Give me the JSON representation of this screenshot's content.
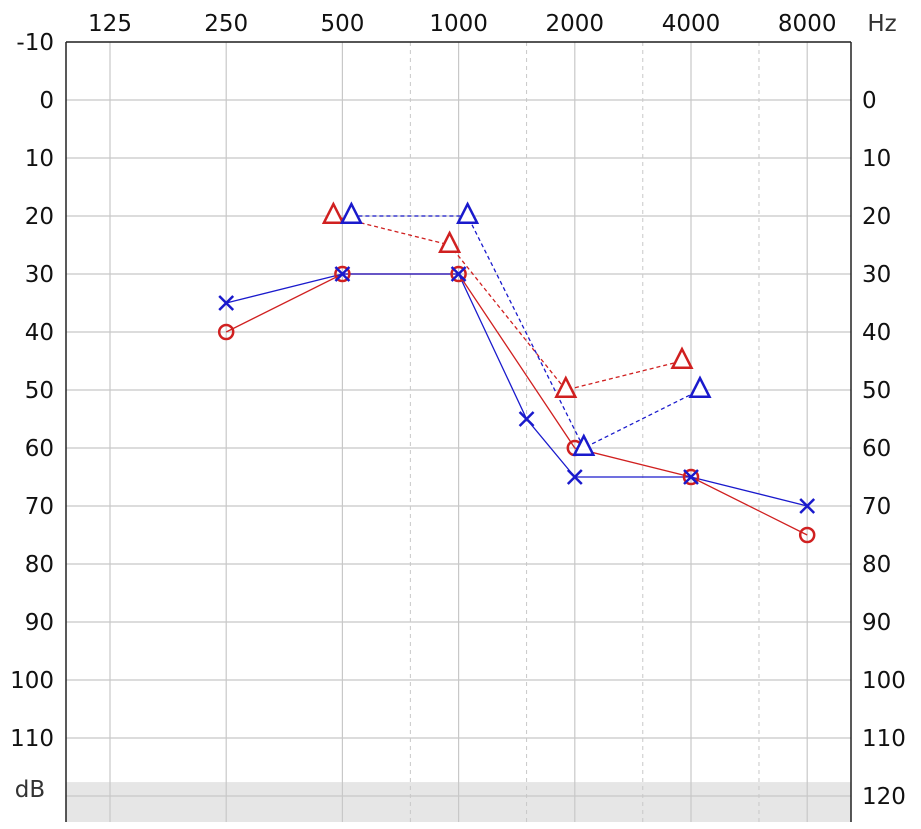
{
  "chart_data": {
    "type": "scatter",
    "title": "",
    "xlabel": "Hz",
    "ylabel": "dB",
    "x_scale": "log2",
    "y_axis_inverted": true,
    "xlim": [
      125,
      8000
    ],
    "ylim": [
      -10,
      120
    ],
    "x_ticks": [
      "125",
      "250",
      "500",
      "1000",
      "2000",
      "4000",
      "8000"
    ],
    "x_intermediate_gridlines": [
      750,
      1500,
      3000,
      6000
    ],
    "y_ticks_left": [
      "-10",
      "0",
      "10",
      "20",
      "30",
      "40",
      "50",
      "60",
      "70",
      "80",
      "90",
      "100",
      "110"
    ],
    "y_ticks_right": [
      "0",
      "10",
      "20",
      "30",
      "40",
      "50",
      "60",
      "70",
      "80",
      "90",
      "100",
      "110",
      "120"
    ],
    "grid": true,
    "colors": {
      "red": "#d02020",
      "blue": "#1a1acc",
      "grid": "#c8c8c8",
      "band": "#e6e6e6"
    },
    "series": [
      {
        "marker": "circle",
        "color": "red",
        "line": "solid",
        "points": [
          [
            250,
            40
          ],
          [
            500,
            30
          ],
          [
            1000,
            30
          ],
          [
            2000,
            60
          ],
          [
            4000,
            65
          ],
          [
            8000,
            75
          ]
        ]
      },
      {
        "marker": "cross",
        "color": "blue",
        "line": "solid",
        "points": [
          [
            250,
            35
          ],
          [
            500,
            30
          ],
          [
            1000,
            30
          ],
          [
            1500,
            55
          ],
          [
            2000,
            65
          ],
          [
            4000,
            65
          ],
          [
            8000,
            70
          ]
        ]
      },
      {
        "marker": "triangle",
        "color": "red",
        "line": "dashed",
        "points": [
          [
            500,
            20
          ],
          [
            1000,
            25
          ],
          [
            2000,
            50
          ],
          [
            4000,
            45
          ]
        ]
      },
      {
        "marker": "triangle",
        "color": "blue",
        "line": "dashed",
        "points": [
          [
            500,
            20
          ],
          [
            1000,
            20
          ],
          [
            2000,
            60
          ],
          [
            4000,
            50
          ]
        ]
      }
    ]
  }
}
